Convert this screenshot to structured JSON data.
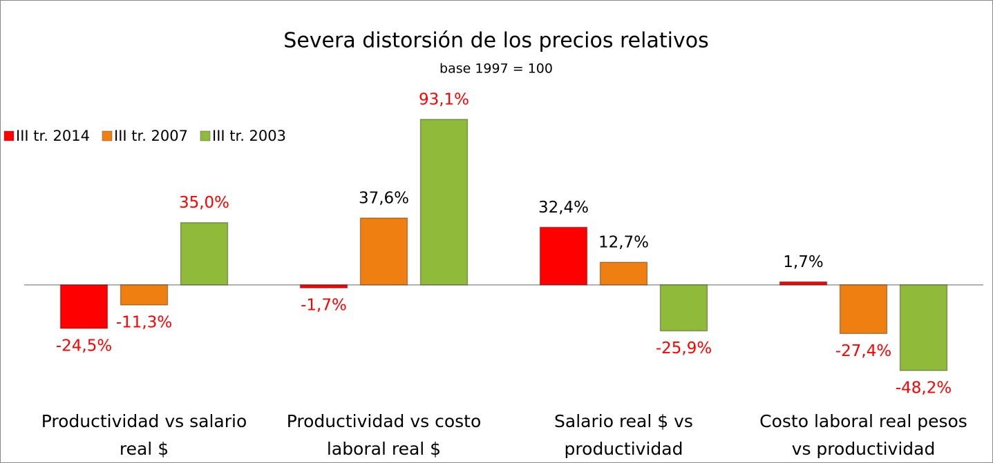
{
  "chart_data": {
    "type": "bar",
    "title": "Severa distorsión de los precios relativos",
    "subtitle": "base 1997 = 100",
    "categories": [
      [
        "Productividad vs salario",
        "real $"
      ],
      [
        "Productividad vs costo",
        "laboral real $"
      ],
      [
        "Salario real $ vs",
        "productividad"
      ],
      [
        "Costo laboral real pesos",
        "vs productividad"
      ]
    ],
    "series": [
      {
        "name": "III tr. 2014",
        "color": "#ff0000",
        "values": [
          -24.5,
          -1.7,
          32.4,
          1.7
        ],
        "value_labels": [
          "-24,5%",
          "-1,7%",
          "32,4%",
          "1,7%"
        ],
        "label_colors": [
          "#ff0000",
          "#ff0000",
          "#000000",
          "#000000"
        ]
      },
      {
        "name": "III tr. 2007",
        "color": "#f07f12",
        "values": [
          -11.3,
          37.6,
          12.7,
          -27.4
        ],
        "value_labels": [
          "-11,3%",
          "37,6%",
          "12,7%",
          "-27,4%"
        ],
        "label_colors": [
          "#ff0000",
          "#000000",
          "#000000",
          "#ff0000"
        ]
      },
      {
        "name": "III tr. 2003",
        "color": "#8fba3a",
        "values": [
          35.0,
          93.1,
          -25.9,
          -48.2
        ],
        "value_labels": [
          "35,0%",
          "93,1%",
          "-25,9%",
          "-48,2%"
        ],
        "label_colors": [
          "#ff0000",
          "#ff0000",
          "#ff0000",
          "#ff0000"
        ]
      }
    ],
    "legend": "top-left"
  }
}
